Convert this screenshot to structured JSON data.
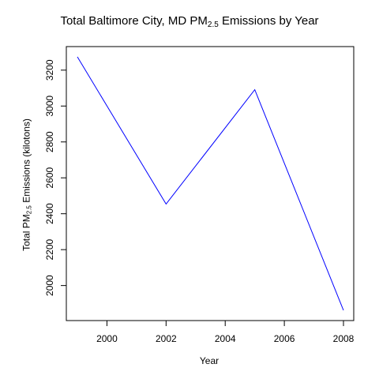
{
  "chart_data": {
    "type": "line",
    "title_pre": "Total Baltimore City, MD PM",
    "title_sub": "2.5",
    "title_post": " Emissions by Year",
    "xlabel": "Year",
    "ylabel_pre": "Total PM",
    "ylabel_sub": "2.5",
    "ylabel_post": " Emissions (kilotons)",
    "x": [
      1999,
      2002,
      2005,
      2008
    ],
    "y": [
      3274,
      2454,
      3091,
      1862
    ],
    "xlim": [
      1999,
      2008
    ],
    "ylim": [
      1862,
      3274
    ],
    "xticks": [
      "2000",
      "2002",
      "2004",
      "2006",
      "2008"
    ],
    "yticks": [
      "2000",
      "2200",
      "2400",
      "2600",
      "2800",
      "3000",
      "3200"
    ],
    "line_color": "#0000ff",
    "grid": false
  }
}
